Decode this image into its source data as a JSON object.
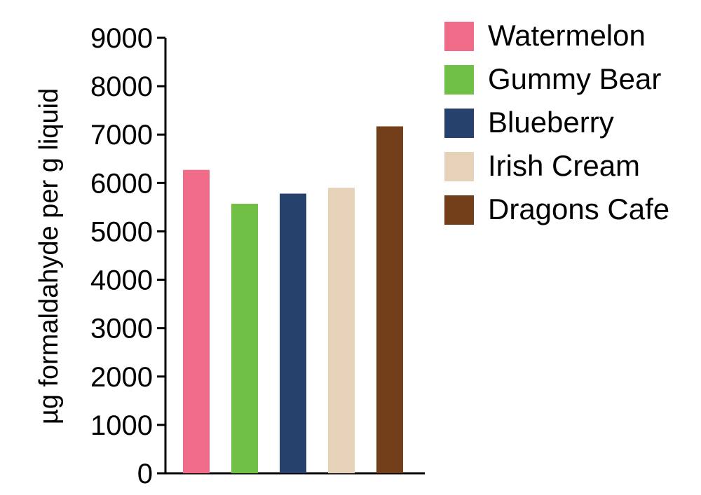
{
  "chart_data": {
    "type": "bar",
    "title": "",
    "xlabel": "",
    "ylabel": "µg formaldahyde per g liquid",
    "ylim": [
      0,
      9000
    ],
    "yticks": [
      0,
      1000,
      2000,
      3000,
      4000,
      5000,
      6000,
      7000,
      8000,
      9000
    ],
    "grid": false,
    "legend_position": "right",
    "categories": [
      "Watermelon",
      "Gummy Bear",
      "Blueberry",
      "Irish Cream",
      "Dragons Cafe"
    ],
    "values": [
      6270,
      5570,
      5780,
      5900,
      7170
    ],
    "colors": [
      "#f06b87",
      "#71c046",
      "#27416d",
      "#e5d2b8",
      "#733f1b"
    ]
  }
}
